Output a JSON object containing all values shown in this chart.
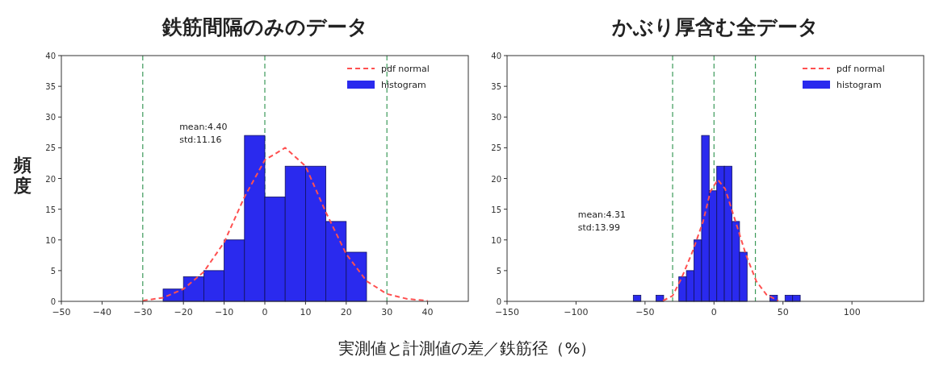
{
  "chart_data": [
    {
      "type": "histogram",
      "title": "鉄筋間隔のみのデータ",
      "ylabel": "頻度",
      "xlabel": "実測値と計測値の差／鉄筋径（%）",
      "xlim": [
        -50,
        50
      ],
      "xticks": [
        -50,
        -40,
        -30,
        -20,
        -10,
        0,
        10,
        20,
        30,
        40
      ],
      "ylim": [
        0,
        40
      ],
      "yticks": [
        0,
        5,
        10,
        15,
        20,
        25,
        30,
        35,
        40
      ],
      "grid": false,
      "legend": "top right",
      "annotations": [
        "mean:4.40",
        "std:11.16"
      ],
      "ref_lines": [
        {
          "axis": "x",
          "value": -30,
          "color": "#3c9a5a",
          "line_style": "dashed"
        },
        {
          "axis": "x",
          "value": 0,
          "color": "#3c9a5a",
          "line_style": "dashed"
        },
        {
          "axis": "x",
          "value": 30,
          "color": "#3c9a5a",
          "line_style": "dashed"
        }
      ],
      "series": [
        {
          "name": "pdf normal",
          "type": "line",
          "color": "#ff5050",
          "line_style": "dashed",
          "x": [
            -30,
            -25,
            -20,
            -15,
            -10,
            -5,
            0,
            5,
            10,
            15,
            20,
            25,
            30,
            35,
            40
          ],
          "values": [
            0.1,
            0.6,
            2,
            4.8,
            9.6,
            17,
            23,
            25,
            22,
            14.5,
            7.7,
            3.3,
            1.2,
            0.4,
            0.1
          ]
        },
        {
          "name": "histogram",
          "color": "#2a2aee",
          "bins": [
            -25,
            -20,
            -15,
            -10,
            -5,
            0,
            5,
            10,
            15,
            20,
            25
          ],
          "values": [
            2,
            4,
            5,
            10,
            27,
            17,
            22,
            22,
            13,
            8
          ]
        }
      ]
    },
    {
      "type": "histogram",
      "title": "かぶり厚含む全データ",
      "xlim": [
        -150,
        152
      ],
      "xticks": [
        -150,
        -100,
        -50,
        0,
        50,
        100
      ],
      "ylim": [
        0,
        40
      ],
      "yticks": [
        0,
        5,
        10,
        15,
        20,
        25,
        30,
        35,
        40
      ],
      "grid": false,
      "legend": "top right",
      "annotations": [
        "mean:4.31",
        "std:13.99"
      ],
      "ref_lines": [
        {
          "axis": "x",
          "value": -30,
          "color": "#3c9a5a",
          "line_style": "dashed"
        },
        {
          "axis": "x",
          "value": 0,
          "color": "#3c9a5a",
          "line_style": "dashed"
        },
        {
          "axis": "x",
          "value": 30,
          "color": "#3c9a5a",
          "line_style": "dashed"
        }
      ],
      "series": [
        {
          "name": "pdf normal",
          "type": "line",
          "color": "#ff5050",
          "line_style": "dashed",
          "x": [
            -37,
            -30,
            -23.5,
            -15.4,
            -7.9,
            -2.6,
            2.8,
            8.1,
            15.6,
            23,
            30.6,
            38,
            46.6
          ],
          "values": [
            0.1,
            0.9,
            3.8,
            8.2,
            13,
            17.9,
            19.8,
            18.3,
            13,
            7.7,
            3.3,
            1.1,
            0.1
          ]
        },
        {
          "name": "histogram",
          "color": "#2a2aee",
          "bins": [
            -58.5,
            -53,
            -47.5,
            -42,
            -36.5,
            -31,
            -25.5,
            -20,
            -14.5,
            -9,
            -3.5,
            2,
            7.5,
            13,
            18.5,
            24,
            29.5,
            35,
            40.5,
            46,
            51.5,
            57,
            62.5
          ],
          "values": [
            1,
            0,
            0,
            1,
            0,
            0,
            4,
            5,
            10,
            27,
            18,
            22,
            22,
            13,
            8,
            0,
            0,
            0,
            1,
            0,
            1,
            1
          ]
        }
      ]
    }
  ]
}
